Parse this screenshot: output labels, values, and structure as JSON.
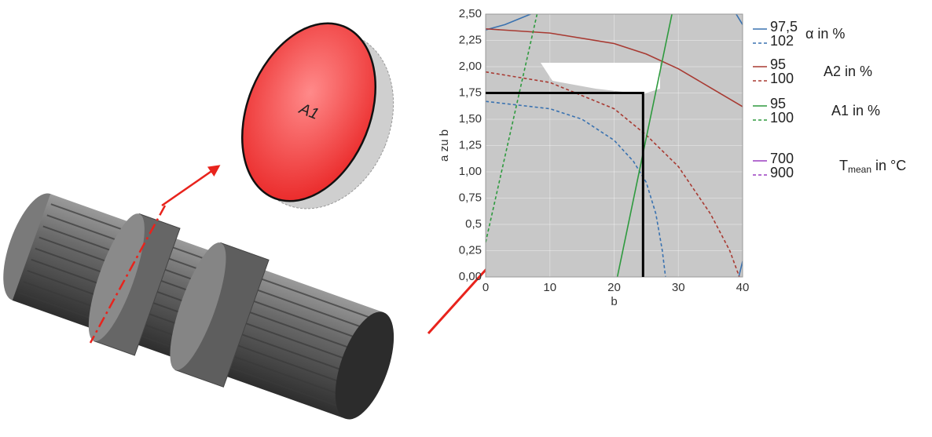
{
  "illustration": {
    "label": "A1"
  },
  "chart_data": {
    "type": "line",
    "x_label": "b",
    "y_label": "a zu b",
    "xlim": [
      0,
      40
    ],
    "ylim": [
      0,
      2.5
    ],
    "xticks": [
      0,
      10,
      20,
      30,
      40
    ],
    "yticks": [
      {
        "value": 0,
        "label": "0,00"
      },
      {
        "value": 0.25,
        "label": "0,25"
      },
      {
        "value": 0.5,
        "label": "0,5"
      },
      {
        "value": 0.75,
        "label": "0,75"
      },
      {
        "value": 1,
        "label": "1,00"
      },
      {
        "value": 1.25,
        "label": "1,25"
      },
      {
        "value": 1.5,
        "label": "1,50"
      },
      {
        "value": 1.75,
        "label": "1,75"
      },
      {
        "value": 2,
        "label": "2,00"
      },
      {
        "value": 2.25,
        "label": "2,25"
      },
      {
        "value": 2.5,
        "label": "2,50"
      }
    ],
    "grid": true,
    "marker": {
      "x": 24.5,
      "y": 1.75
    },
    "groups": [
      {
        "title": "α in %",
        "series": [
          {
            "name": "97,5",
            "color": "#3a72b0",
            "dash": false,
            "x": [
              0,
              3,
              7,
              null,
              39,
              40,
              null,
              39.4,
              40
            ],
            "values": [
              2.35,
              2.4,
              2.5,
              null,
              2.5,
              2.4,
              null,
              0,
              0.15
            ]
          },
          {
            "name": "102",
            "color": "#3a72b0",
            "dash": true,
            "x": [
              0,
              10,
              15,
              20,
              23,
              25,
              26.5,
              27.5,
              28
            ],
            "values": [
              1.67,
              1.6,
              1.5,
              1.3,
              1.1,
              0.9,
              0.6,
              0.25,
              0
            ]
          }
        ]
      },
      {
        "title": "A2 in %",
        "series": [
          {
            "name": "95",
            "color": "#a83a32",
            "dash": false,
            "x": [
              0,
              10,
              20,
              25,
              30,
              35,
              40
            ],
            "values": [
              2.36,
              2.32,
              2.22,
              2.12,
              1.98,
              1.8,
              1.62
            ]
          },
          {
            "name": "100",
            "color": "#a83a32",
            "dash": true,
            "x": [
              0,
              10,
              20,
              25,
              30,
              35,
              38,
              39.5
            ],
            "values": [
              1.95,
              1.85,
              1.6,
              1.35,
              1.05,
              0.6,
              0.25,
              0
            ]
          }
        ]
      },
      {
        "title": "A1 in %",
        "series": [
          {
            "name": "95",
            "color": "#2e9a3e",
            "dash": false,
            "x": [
              20.5,
              29
            ],
            "values": [
              0,
              2.5
            ]
          },
          {
            "name": "100",
            "color": "#2e9a3e",
            "dash": true,
            "x": [
              0,
              8
            ],
            "values": [
              0.33,
              2.5
            ]
          }
        ]
      },
      {
        "title": "T",
        "title_sub": "mean",
        "title_rest": " in °C",
        "series": [
          {
            "name": "700",
            "color": "#9b3fc0",
            "dash": false,
            "x": [],
            "values": []
          },
          {
            "name": "900",
            "color": "#9b3fc0",
            "dash": true,
            "x": [],
            "values": []
          }
        ]
      }
    ]
  }
}
